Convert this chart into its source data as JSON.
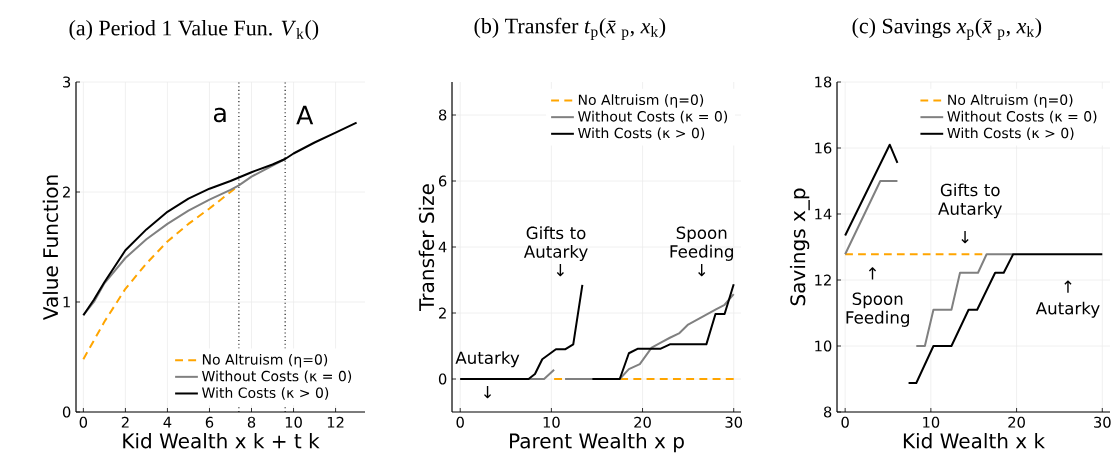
{
  "chart_data": [
    {
      "type": "line",
      "title": "(a) Period 1 Value Fun. *V*$_{k}$()",
      "xlabel": "Kid Wealth x k + t k",
      "ylabel": "Value Function",
      "xlim": [
        -0.35,
        13.4
      ],
      "ylim": [
        0,
        3
      ],
      "xticks": [
        0,
        2,
        4,
        6,
        8,
        10,
        12
      ],
      "yticks": [
        0,
        1,
        2,
        3
      ],
      "grid": true,
      "legend": "bottom right",
      "ref_lines": [
        {
          "axis": "x",
          "value": 7.4,
          "label": "a",
          "line_style": "dotted"
        },
        {
          "axis": "x",
          "value": 9.6,
          "label": "A",
          "line_style": "dotted"
        }
      ],
      "series": [
        {
          "name": "No Altruism (η=0)",
          "color": "#ffa500",
          "line_style": "dashed",
          "x": [
            0,
            1,
            2,
            3,
            4,
            5,
            6,
            7,
            7.2
          ],
          "values": [
            0.48,
            0.82,
            1.12,
            1.35,
            1.55,
            1.71,
            1.85,
            2.0,
            2.03
          ]
        },
        {
          "name": "Without Costs (κ = 0)",
          "color": "#808080",
          "line_style": "solid",
          "x": [
            0,
            0.5,
            1,
            2,
            3,
            4,
            5,
            6,
            7,
            7.4,
            8,
            9,
            9.6
          ],
          "values": [
            0.88,
            1.0,
            1.17,
            1.4,
            1.57,
            1.71,
            1.83,
            1.93,
            2.02,
            2.06,
            2.14,
            2.24,
            2.3
          ]
        },
        {
          "name": "With Costs (κ > 0)",
          "color": "#000000",
          "line_style": "solid",
          "x": [
            0,
            0.5,
            1,
            2,
            3,
            4,
            5,
            6,
            7,
            8,
            9,
            9.6,
            10,
            11,
            12,
            13
          ],
          "values": [
            0.88,
            1.02,
            1.18,
            1.47,
            1.66,
            1.82,
            1.94,
            2.03,
            2.1,
            2.18,
            2.25,
            2.3,
            2.35,
            2.45,
            2.54,
            2.63
          ]
        }
      ]
    },
    {
      "type": "line",
      "title": "(b) Transfer *t*$_{p}$(*x̄*$_{p}$, *x*$_{k}$)",
      "xlabel": "Parent Wealth x p",
      "ylabel": "Transfer Size",
      "xlim": [
        -0.9,
        30.8
      ],
      "ylim": [
        -1,
        9
      ],
      "xticks": [
        0,
        10,
        20,
        30
      ],
      "yticks": [
        0,
        2,
        4,
        6,
        8
      ],
      "grid": true,
      "legend": "top right",
      "annotations": [
        "Autarky",
        "↓",
        "Gifts to Autarky",
        "↓",
        "Spoon Feeding",
        "↓"
      ],
      "series": [
        {
          "name": "No Altruism (η=0)",
          "color": "#ffa500",
          "line_style": "dashed",
          "x": [
            10.3,
            30
          ],
          "values": [
            0,
            0
          ]
        },
        {
          "name": "Without Costs (κ = 0)",
          "color": "#808080",
          "line_style": "solid",
          "x": [
            0,
            7.5,
            9.2,
            10.3,
            10.9,
            11.5,
            14.5,
            17.5,
            18.5,
            19.7,
            21,
            22,
            23,
            24,
            25,
            26,
            27,
            28,
            29,
            30
          ],
          "values": [
            0,
            0,
            0,
            0.28,
            null,
            0,
            0,
            0,
            0.3,
            0.45,
            0.95,
            1.1,
            1.25,
            1.38,
            1.65,
            1.8,
            1.95,
            2.1,
            2.25,
            2.57
          ]
        },
        {
          "name": "With Costs (κ > 0)",
          "color": "#000000",
          "line_style": "solid",
          "x": [
            0,
            7.5,
            8.2,
            9,
            10.5,
            11.5,
            12.4,
            13.4,
            14,
            14.5,
            17.5,
            18.5,
            19.5,
            22,
            23,
            27,
            28,
            29,
            30
          ],
          "values": [
            0,
            0,
            0.15,
            0.6,
            0.9,
            0.9,
            1.05,
            2.85,
            null,
            0,
            0,
            0.78,
            0.92,
            0.92,
            1.05,
            1.05,
            1.97,
            1.97,
            2.87
          ]
        }
      ]
    },
    {
      "type": "line",
      "title": "(c) Savings *x*$_{p}$(*x̄*$_{p}$, *x*$_{k}$)",
      "xlabel": "Kid Wealth x k",
      "ylabel": "Savings x_p",
      "xlim": [
        -0.95,
        30.9
      ],
      "ylim": [
        8,
        18
      ],
      "xticks": [
        0,
        10,
        20,
        30
      ],
      "yticks": [
        8,
        10,
        12,
        14,
        16,
        18
      ],
      "grid": true,
      "legend": "top right",
      "annotations": [
        "Gifts to Autarky",
        "↓",
        "↑",
        "Spoon Feeding",
        "↑",
        "Autarky"
      ],
      "series": [
        {
          "name": "No Altruism (η=0)",
          "color": "#ffa500",
          "line_style": "dashed",
          "x": [
            0,
            16
          ],
          "values": [
            12.78,
            12.78
          ]
        },
        {
          "name": "Without Costs (κ = 0)",
          "color": "#808080",
          "line_style": "solid",
          "x": [
            0,
            4.1,
            6.1,
            7.2,
            8.3,
            9.3,
            10.3,
            12.4,
            13.4,
            15.5,
            16.5,
            19.6
          ],
          "values": [
            12.78,
            15,
            15,
            null,
            10,
            10,
            11.1,
            11.1,
            12.22,
            12.22,
            12.78,
            12.78
          ]
        },
        {
          "name": "With Costs (κ > 0)",
          "color": "#000000",
          "line_style": "solid",
          "x": [
            0,
            5.2,
            6.1,
            6.8,
            7.4,
            8.3,
            10.3,
            12.4,
            14.4,
            15.4,
            17.5,
            18.5,
            19.6,
            30
          ],
          "values": [
            13.35,
            16.1,
            15.55,
            null,
            8.88,
            8.88,
            10,
            10,
            11.1,
            11.1,
            12.22,
            12.22,
            12.78,
            12.78
          ]
        }
      ]
    }
  ]
}
